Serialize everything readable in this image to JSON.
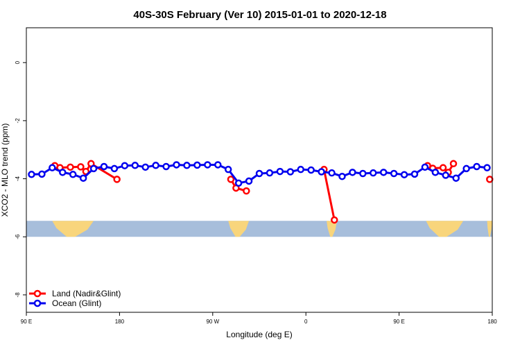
{
  "chart_data": {
    "type": "line",
    "title": "40S-30S February (Ver 10)   2015-01-01 to 2020-12-18",
    "xlabel": "Longitude (deg E)",
    "ylabel": "XCO2 - MLO trend (ppm)",
    "xlim": [
      90,
      540
    ],
    "ylim": [
      1.2,
      -8.6
    ],
    "x_ticks": [
      {
        "value": 90,
        "label": "90 E"
      },
      {
        "value": 180,
        "label": "180"
      },
      {
        "value": 270,
        "label": "90 W"
      },
      {
        "value": 360,
        "label": "0"
      },
      {
        "value": 450,
        "label": "90 E"
      },
      {
        "value": 540,
        "label": "180"
      }
    ],
    "y_ticks": [
      {
        "value": 0,
        "label": "0"
      },
      {
        "value": -2,
        "label": "-2"
      },
      {
        "value": -4,
        "label": "-4"
      },
      {
        "value": -6,
        "label": "-6"
      },
      {
        "value": -8,
        "label": "-8"
      }
    ],
    "grid": false,
    "legend_position": "bottom-left",
    "map_strip": {
      "y_range": [
        -5.45,
        -6.0
      ],
      "ocean_color": "#a7bedb",
      "land_color": "#f8d57c",
      "land_intervals": [
        [
          115,
          155
        ],
        [
          285,
          305
        ],
        [
          380,
          390
        ],
        [
          476,
          512
        ],
        [
          535,
          540
        ]
      ]
    },
    "series": [
      {
        "name": "Land (Nadir&Glint)",
        "color": "#ff0000",
        "segments": [
          [
            [
              117.5,
              -3.55
            ],
            [
              122.5,
              -3.62
            ],
            [
              132.5,
              -3.6
            ],
            [
              142.5,
              -3.59
            ],
            [
              147.5,
              -3.75
            ],
            [
              152.5,
              -3.48
            ],
            [
              177.5,
              -4.02
            ]
          ],
          [
            [
              287.5,
              -4.02
            ],
            [
              292.5,
              -4.32
            ],
            [
              302.5,
              -4.42
            ]
          ],
          [
            [
              377.5,
              -3.68
            ],
            [
              387.5,
              -5.42
            ]
          ],
          [
            [
              477.5,
              -3.55
            ],
            [
              482.5,
              -3.64
            ],
            [
              492.5,
              -3.62
            ],
            [
              497.5,
              -3.78
            ],
            [
              502.5,
              -3.48
            ]
          ],
          [
            [
              537.5,
              -4.02
            ]
          ]
        ]
      },
      {
        "name": "Ocean (Glint)",
        "color": "#0000ee",
        "segments": [
          [
            [
              95,
              -3.85
            ],
            [
              105,
              -3.84
            ],
            [
              115,
              -3.62
            ],
            [
              125,
              -3.78
            ],
            [
              135,
              -3.85
            ],
            [
              145,
              -3.98
            ],
            [
              155,
              -3.65
            ],
            [
              165,
              -3.58
            ],
            [
              175,
              -3.65
            ],
            [
              185,
              -3.55
            ],
            [
              195,
              -3.54
            ],
            [
              205,
              -3.6
            ],
            [
              215,
              -3.54
            ],
            [
              225,
              -3.58
            ],
            [
              235,
              -3.52
            ],
            [
              245,
              -3.54
            ],
            [
              255,
              -3.53
            ],
            [
              265,
              -3.52
            ],
            [
              275,
              -3.52
            ],
            [
              285,
              -3.68
            ],
            [
              295,
              -4.15
            ],
            [
              305,
              -4.08
            ],
            [
              315,
              -3.82
            ],
            [
              325,
              -3.8
            ],
            [
              335,
              -3.75
            ],
            [
              345,
              -3.76
            ],
            [
              355,
              -3.68
            ],
            [
              365,
              -3.7
            ],
            [
              375,
              -3.76
            ],
            [
              385,
              -3.8
            ],
            [
              395,
              -3.92
            ],
            [
              405,
              -3.78
            ],
            [
              415,
              -3.82
            ],
            [
              425,
              -3.8
            ],
            [
              435,
              -3.78
            ],
            [
              445,
              -3.82
            ],
            [
              455,
              -3.86
            ],
            [
              465,
              -3.84
            ],
            [
              475,
              -3.6
            ],
            [
              485,
              -3.78
            ],
            [
              495,
              -3.88
            ],
            [
              505,
              -3.98
            ],
            [
              515,
              -3.65
            ],
            [
              525,
              -3.58
            ],
            [
              535,
              -3.62
            ]
          ]
        ]
      }
    ]
  }
}
